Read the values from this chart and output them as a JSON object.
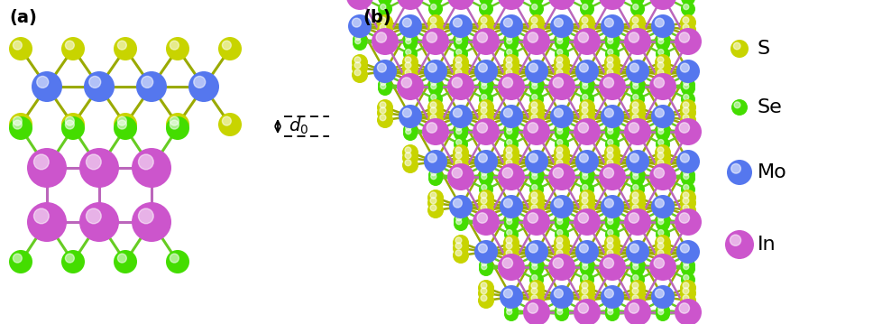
{
  "colors": {
    "S": "#c8d400",
    "Se": "#44dd00",
    "Mo": "#5577ee",
    "In": "#cc55cc",
    "bond_MoS": "#9aaa00",
    "bond_InSe": "#66cc22",
    "bond_In_vert": "#bb66bb"
  },
  "label_a": "(a)",
  "label_b": "(b)",
  "background": "#ffffff",
  "figsize": [
    9.79,
    3.59
  ],
  "dpi": 100
}
